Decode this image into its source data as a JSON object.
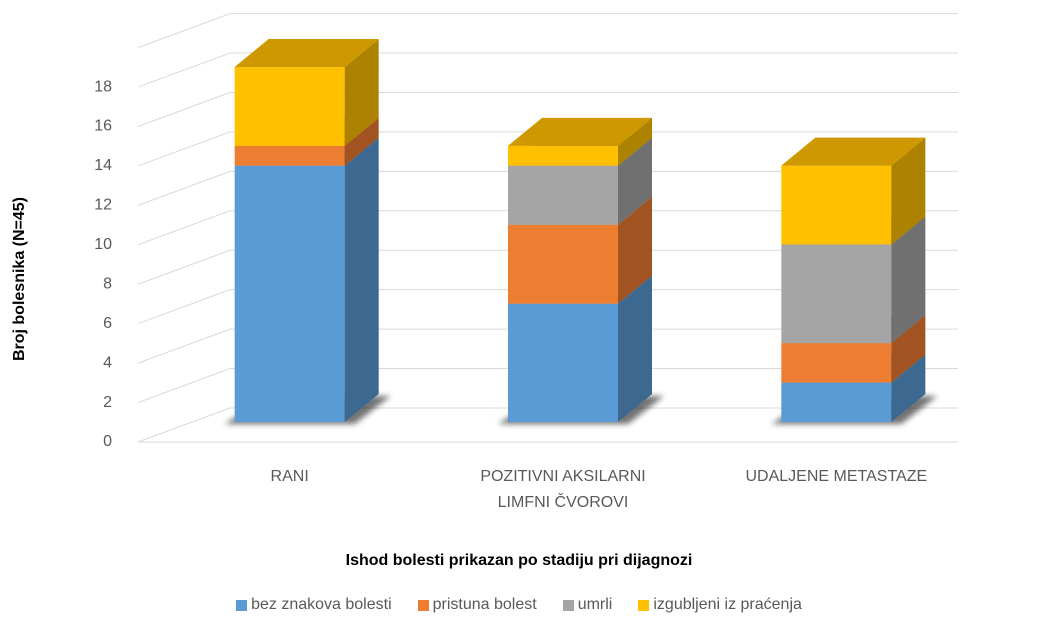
{
  "chart_data": {
    "type": "bar3d_stacked",
    "x_label": "Ishod bolesti prikazan po stadiju pri dijagnozi",
    "y_label": "Broj bolesnika (N=45)",
    "categories": [
      "RANI",
      "POZITIVNI AKSILARNI LIMFNI ČVOROVI",
      "UDALJENE METASTAZE"
    ],
    "series": [
      {
        "name": "bez znakova bolesti",
        "color": "#5b9bd5",
        "values": [
          13,
          6,
          2
        ]
      },
      {
        "name": "pristuna bolest",
        "color": "#ed7d31",
        "values": [
          1,
          4,
          2
        ]
      },
      {
        "name": "umrli",
        "color": "#a5a5a5",
        "values": [
          0,
          3,
          5
        ]
      },
      {
        "name": "izgubljeni iz praćenja",
        "color": "#ffc000",
        "values": [
          4,
          1,
          4
        ]
      }
    ],
    "ylim": [
      0,
      20
    ],
    "yticks": [
      0,
      2,
      4,
      6,
      8,
      10,
      12,
      14,
      16,
      18
    ],
    "grid": true,
    "legend": "bottom"
  }
}
